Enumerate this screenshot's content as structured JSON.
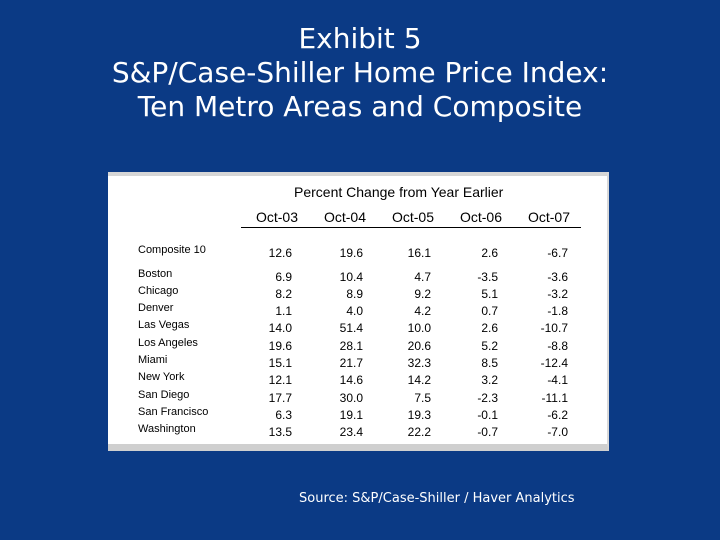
{
  "title": {
    "line1": "Exhibit 5",
    "line2": "S&P/Case-Shiller Home Price Index:",
    "line3": "Ten Metro Areas and Composite"
  },
  "source": "Source: S&P/Case-Shiller / Haver Analytics",
  "colors": {
    "background": "#0b3a85",
    "panel": "#ffffff",
    "text_light": "#ffffff"
  },
  "chart_data": {
    "type": "table",
    "header": "Percent Change from Year Earlier",
    "columns": [
      "Oct-03",
      "Oct-04",
      "Oct-05",
      "Oct-06",
      "Oct-07"
    ],
    "rows": [
      {
        "label": "Composite 10",
        "values": [
          "12.6",
          "19.6",
          "16.1",
          "2.6",
          "-6.7"
        ]
      },
      {
        "label": "Boston",
        "values": [
          "6.9",
          "10.4",
          "4.7",
          "-3.5",
          "-3.6"
        ]
      },
      {
        "label": "Chicago",
        "values": [
          "8.2",
          "8.9",
          "9.2",
          "5.1",
          "-3.2"
        ]
      },
      {
        "label": "Denver",
        "values": [
          "1.1",
          "4.0",
          "4.2",
          "0.7",
          "-1.8"
        ]
      },
      {
        "label": "Las Vegas",
        "values": [
          "14.0",
          "51.4",
          "10.0",
          "2.6",
          "-10.7"
        ]
      },
      {
        "label": "Los Angeles",
        "values": [
          "19.6",
          "28.1",
          "20.6",
          "5.2",
          "-8.8"
        ]
      },
      {
        "label": "Miami",
        "values": [
          "15.1",
          "21.7",
          "32.3",
          "8.5",
          "-12.4"
        ]
      },
      {
        "label": "New York",
        "values": [
          "12.1",
          "14.6",
          "14.2",
          "3.2",
          "-4.1"
        ]
      },
      {
        "label": "San Diego",
        "values": [
          "17.7",
          "30.0",
          "7.5",
          "-2.3",
          "-11.1"
        ]
      },
      {
        "label": "San Francisco",
        "values": [
          "6.3",
          "19.1",
          "19.3",
          "-0.1",
          "-6.2"
        ]
      },
      {
        "label": "Washington",
        "values": [
          "13.5",
          "23.4",
          "22.2",
          "-0.7",
          "-7.0"
        ]
      }
    ]
  }
}
